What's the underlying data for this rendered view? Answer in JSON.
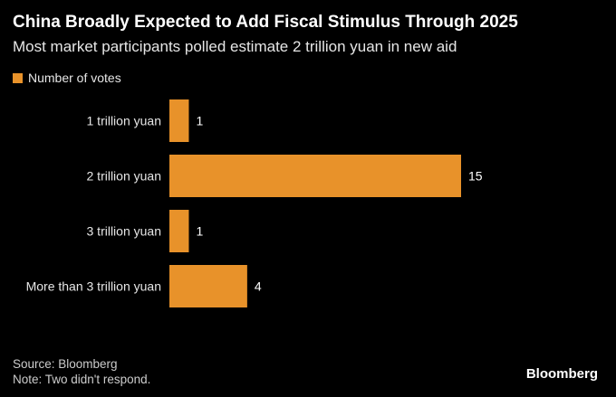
{
  "title": "China Broadly Expected to Add Fiscal Stimulus Through 2025",
  "subtitle": "Most market participants polled estimate 2 trillion yuan in new aid",
  "colors": {
    "bar": "#e8922a",
    "background": "#000000",
    "text": "#ffffff"
  },
  "chart_data": {
    "type": "bar",
    "orientation": "horizontal",
    "categories": [
      "1 trillion yuan",
      "2 trillion yuan",
      "3 trillion yuan",
      "More than 3 trillion yuan"
    ],
    "series": [
      {
        "name": "Number of votes",
        "values": [
          1,
          15,
          1,
          4
        ]
      }
    ],
    "data_labels": [
      "1",
      "15",
      "1",
      "4"
    ],
    "xlim": [
      0,
      15
    ],
    "grid": false,
    "legend": "top-left"
  },
  "footer": {
    "source": "Source: Bloomberg",
    "note": "Note: Two didn't respond."
  },
  "brand": "Bloomberg"
}
